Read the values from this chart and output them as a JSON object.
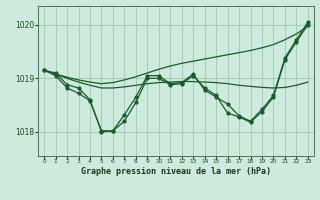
{
  "title": "Graphe pression niveau de la mer (hPa)",
  "background_color": "#ceeade",
  "grid_color": "#99ccaa",
  "line_color": "#1a5c2a",
  "xlim": [
    -0.5,
    23.5
  ],
  "ylim": [
    1017.55,
    1020.35
  ],
  "yticks": [
    1018,
    1019,
    1020
  ],
  "xticks": [
    0,
    1,
    2,
    3,
    4,
    5,
    6,
    7,
    8,
    9,
    10,
    11,
    12,
    13,
    14,
    15,
    16,
    17,
    18,
    19,
    20,
    21,
    22,
    23
  ],
  "upper_envelope_y": [
    1019.15,
    1019.08,
    1019.02,
    1018.97,
    1018.93,
    1018.9,
    1018.92,
    1018.97,
    1019.03,
    1019.1,
    1019.17,
    1019.23,
    1019.28,
    1019.32,
    1019.36,
    1019.4,
    1019.44,
    1019.48,
    1019.52,
    1019.57,
    1019.63,
    1019.72,
    1019.83,
    1019.97
  ],
  "lower_envelope_y": [
    1019.15,
    1019.08,
    1019.0,
    1018.93,
    1018.87,
    1018.82,
    1018.82,
    1018.84,
    1018.87,
    1018.9,
    1018.92,
    1018.93,
    1018.94,
    1018.94,
    1018.93,
    1018.92,
    1018.9,
    1018.87,
    1018.85,
    1018.83,
    1018.82,
    1018.83,
    1018.87,
    1018.93
  ],
  "zigzag1_x": [
    0,
    1,
    2,
    3,
    4,
    5,
    6,
    7,
    8,
    9,
    10,
    11,
    12,
    13,
    14,
    15,
    16,
    17,
    18,
    19,
    20,
    21,
    22,
    23
  ],
  "zigzag1_y": [
    1019.15,
    1019.1,
    1018.88,
    1018.82,
    1018.6,
    1018.0,
    1018.02,
    1018.2,
    1018.55,
    1019.0,
    1019.0,
    1018.88,
    1018.9,
    1019.05,
    1018.82,
    1018.68,
    1018.35,
    1018.28,
    1018.18,
    1018.38,
    1018.65,
    1019.35,
    1019.68,
    1020.0
  ],
  "zigzag2_x": [
    0,
    1,
    2,
    3,
    4,
    5,
    6,
    7,
    8,
    9,
    10,
    11,
    12,
    13,
    14,
    15,
    16,
    17,
    18,
    19,
    20,
    21,
    22,
    23
  ],
  "zigzag2_y": [
    1019.15,
    1019.05,
    1018.82,
    1018.72,
    1018.58,
    1018.02,
    1018.02,
    1018.32,
    1018.65,
    1019.05,
    1019.05,
    1018.9,
    1018.92,
    1019.08,
    1018.78,
    1018.65,
    1018.52,
    1018.3,
    1018.2,
    1018.42,
    1018.68,
    1019.38,
    1019.72,
    1020.05
  ]
}
